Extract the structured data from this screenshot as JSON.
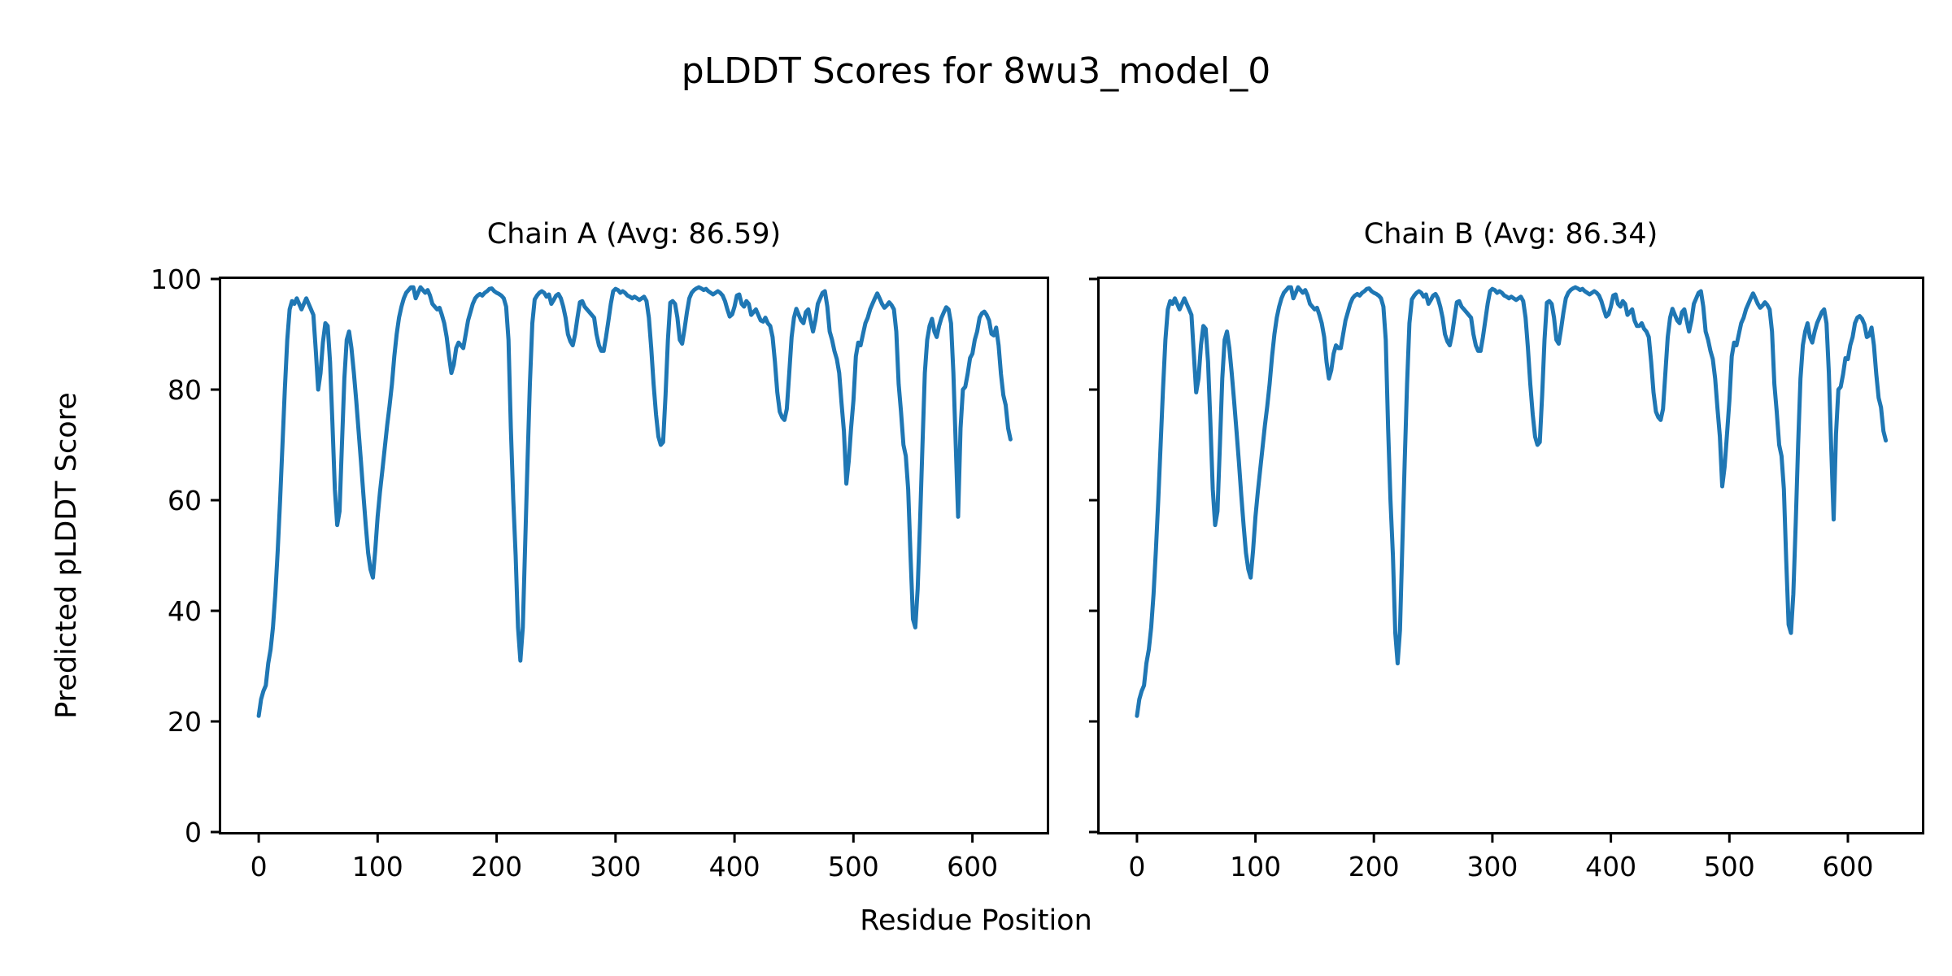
{
  "figure": {
    "suptitle": "pLDDT Scores for 8wu3_model_0",
    "xlabel": "Residue Position",
    "ylabel": "Predicted pLDDT Score",
    "background_color": "#ffffff",
    "spine_color": "#000000",
    "text_color": "#000000"
  },
  "chart_data": [
    {
      "type": "line",
      "title": "Chain A (Avg: 86.59)",
      "series_name": "Chain A pLDDT",
      "avg": 86.59,
      "line_color": "#1f77b4",
      "xlim": [
        -31.5,
        662.5
      ],
      "ylim": [
        0,
        100
      ],
      "x_ticks": [
        0,
        100,
        200,
        300,
        400,
        500,
        600
      ],
      "y_ticks": [
        0,
        20,
        40,
        60,
        80,
        100
      ],
      "show_y_tick_labels": true,
      "x_start": 0,
      "x_step": 2,
      "values": [
        21,
        24,
        25.5,
        26.5,
        30.5,
        33,
        37,
        43,
        51,
        60,
        70,
        80,
        89,
        94.5,
        96,
        95.5,
        96.5,
        95.5,
        94.5,
        95.5,
        96.5,
        95.5,
        94.5,
        93.5,
        87,
        80,
        83,
        88.5,
        92,
        91.5,
        85,
        74,
        62,
        55.5,
        58,
        70,
        82,
        89,
        90.5,
        87.5,
        83,
        78,
        72.5,
        67,
        61,
        55.5,
        50.5,
        47.5,
        46,
        51,
        57,
        61.5,
        65.5,
        69.5,
        73.5,
        77,
        81,
        86,
        90,
        93,
        95,
        96.5,
        97.5,
        98,
        98.5,
        98.5,
        96.5,
        97.5,
        98.5,
        98,
        97.5,
        98,
        97,
        95.5,
        95,
        94.5,
        94.8,
        93.5,
        92,
        89.5,
        86,
        83,
        84.5,
        87.5,
        88.5,
        88,
        87.5,
        90,
        92.5,
        94,
        95.5,
        96.5,
        97,
        97.3,
        97,
        97.5,
        97.8,
        98.2,
        98.3,
        97.8,
        97.5,
        97.3,
        97,
        96.5,
        95,
        89,
        73,
        60,
        50,
        37,
        31,
        37,
        52,
        67,
        81,
        92,
        96.3,
        97,
        97.5,
        97.8,
        97.5,
        96.8,
        97.2,
        95.5,
        96.2,
        97,
        97.3,
        96.5,
        95,
        93,
        90,
        88.7,
        88,
        90,
        93,
        95.8,
        96,
        95,
        94.5,
        94,
        93.5,
        93,
        90,
        88,
        87,
        87,
        89.5,
        92.5,
        95.5,
        97.8,
        98.2,
        98,
        97.5,
        97.8,
        97.5,
        97,
        96.8,
        96.5,
        96.8,
        96.5,
        96.2,
        96.5,
        96.8,
        96,
        93,
        87.5,
        81,
        75.5,
        71.5,
        70,
        70.5,
        79,
        89,
        95.7,
        96,
        95.5,
        93,
        89,
        88.3,
        91,
        94,
        96.5,
        97.5,
        98,
        98.3,
        98.5,
        98.3,
        98,
        98.2,
        97.8,
        97.5,
        97.2,
        97.5,
        97.8,
        97.5,
        97,
        96,
        94.5,
        93.2,
        93.6,
        95,
        97,
        97.2,
        95.5,
        95,
        96,
        95.5,
        93.5,
        94,
        94.5,
        93.5,
        92.5,
        92.3,
        93,
        92,
        91.5,
        89.5,
        85,
        79.5,
        76,
        75,
        74.5,
        76.5,
        83,
        89.5,
        93,
        94.6,
        93.5,
        92.5,
        92,
        94,
        94.5,
        92.5,
        90.5,
        92.5,
        95.5,
        96.5,
        97.5,
        97.8,
        95,
        90.5,
        89,
        87,
        85.5,
        83,
        77.5,
        72.5,
        63,
        67,
        73,
        78,
        86,
        88.5,
        88,
        90,
        92,
        93,
        94.5,
        95.5,
        96.5,
        97.4,
        96.5,
        95.5,
        94.8,
        95.2,
        95.8,
        95.3,
        94.5,
        90.5,
        81,
        76,
        70,
        68,
        62,
        50,
        38.5,
        37,
        44,
        56,
        70,
        83,
        89,
        91.5,
        92.8,
        90.5,
        89.5,
        91.5,
        93,
        94,
        94.9,
        94.5,
        92,
        83,
        70,
        57,
        73,
        80,
        80.5,
        82.8,
        85.7,
        86.5,
        89,
        90.5,
        93,
        93.8,
        94.1,
        93.5,
        92.5,
        90.1,
        89.8,
        91.2,
        88,
        82.8,
        79,
        77.2,
        73,
        71
      ]
    },
    {
      "type": "line",
      "title": "Chain B (Avg: 86.34)",
      "series_name": "Chain B pLDDT",
      "avg": 86.34,
      "line_color": "#1f77b4",
      "xlim": [
        -31.5,
        662.5
      ],
      "ylim": [
        0,
        100
      ],
      "x_ticks": [
        0,
        100,
        200,
        300,
        400,
        500,
        600
      ],
      "y_ticks": [
        0,
        20,
        40,
        60,
        80,
        100
      ],
      "show_y_tick_labels": false,
      "x_start": 0,
      "x_step": 2,
      "values": [
        21,
        24,
        25.5,
        26.5,
        30.5,
        33,
        37,
        43,
        51,
        60,
        70,
        80,
        89,
        94.5,
        96,
        95.5,
        96.5,
        95.5,
        94.5,
        95.5,
        96.5,
        95.5,
        94.5,
        93.5,
        86.5,
        79.5,
        82,
        88,
        91.5,
        91,
        85,
        74,
        62,
        55.5,
        58,
        70,
        82,
        89,
        90.5,
        87.5,
        83,
        78,
        72.5,
        67,
        61,
        55.5,
        50.5,
        47.5,
        46,
        51,
        57,
        61.5,
        65.5,
        69.5,
        73.5,
        77,
        81,
        86,
        90,
        93,
        95,
        96.5,
        97.5,
        98,
        98.5,
        98.5,
        96.5,
        97.5,
        98.5,
        98,
        97.5,
        98,
        97,
        95.5,
        95,
        94.5,
        94.8,
        93.5,
        92,
        89.5,
        85,
        82,
        83.5,
        86.5,
        88,
        87.5,
        87.5,
        90,
        92.5,
        94,
        95.5,
        96.5,
        97,
        97.3,
        97,
        97.5,
        97.8,
        98.2,
        98.3,
        97.8,
        97.5,
        97.3,
        97,
        96.5,
        95,
        89,
        73,
        60,
        50,
        36,
        30.5,
        36.5,
        52,
        67,
        81,
        92,
        96.3,
        97,
        97.5,
        97.8,
        97.5,
        96.8,
        97.2,
        95.5,
        96.2,
        97,
        97.3,
        96.5,
        95,
        93,
        90,
        88.7,
        88,
        90,
        93,
        95.8,
        96,
        95,
        94.5,
        94,
        93.5,
        93,
        90,
        88,
        87,
        87,
        89.5,
        92.5,
        95.5,
        97.8,
        98.2,
        98,
        97.5,
        97.8,
        97.5,
        97,
        96.8,
        96.5,
        96.8,
        96.5,
        96.2,
        96.5,
        96.8,
        96,
        93,
        87.5,
        81,
        75.5,
        71.5,
        70,
        70.5,
        79,
        89,
        95.7,
        96,
        95.5,
        93,
        89,
        88.3,
        91,
        94,
        96.5,
        97.5,
        98,
        98.3,
        98.5,
        98.3,
        98,
        98.2,
        97.8,
        97.5,
        97.2,
        97.5,
        97.8,
        97.5,
        97,
        96,
        94.5,
        93.2,
        93.6,
        95,
        97,
        97.2,
        95.5,
        95,
        96,
        95.5,
        93.5,
        94,
        94.5,
        92.5,
        91.5,
        91.5,
        92,
        91,
        90.5,
        89.5,
        85,
        79.5,
        76,
        75,
        74.5,
        76.5,
        83,
        89.5,
        93,
        94.6,
        93.5,
        92.5,
        92,
        94,
        94.5,
        92.5,
        90.5,
        92.5,
        95.5,
        96.5,
        97.5,
        97.8,
        95,
        90.5,
        89,
        87,
        85.5,
        82,
        76.5,
        71.5,
        62.5,
        66,
        72,
        78,
        86,
        88.5,
        88,
        90,
        92,
        93,
        94.5,
        95.5,
        96.5,
        97.4,
        96.5,
        95.5,
        94.8,
        95.2,
        95.8,
        95.3,
        94.5,
        90.5,
        81,
        76,
        70,
        68,
        62,
        49,
        37.5,
        36,
        43,
        56,
        70,
        82,
        88,
        90.5,
        92,
        89.5,
        88.5,
        90.5,
        92,
        93,
        94,
        94.5,
        92,
        83,
        69,
        56.5,
        72,
        80,
        80.5,
        82.8,
        85.7,
        85.5,
        88,
        89.5,
        92,
        93,
        93.3,
        92.8,
        91.8,
        89.5,
        89.8,
        91.2,
        88,
        82.8,
        78.5,
        76.8,
        72.5,
        70.8
      ]
    }
  ]
}
